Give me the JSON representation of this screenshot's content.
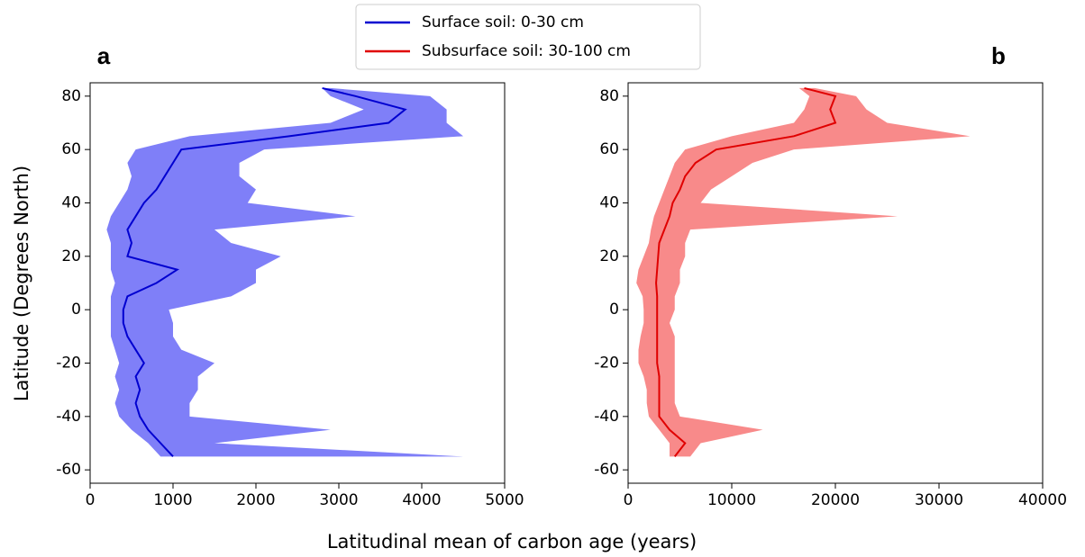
{
  "shared": {
    "xlabel": "Latitudinal mean of carbon age (years)",
    "ylabel": "Latitude (Degrees North)"
  },
  "chart_data": [
    {
      "type": "line",
      "panel_label": "a",
      "xlim": [
        0,
        5000
      ],
      "xticks": [
        0,
        1000,
        2000,
        3000,
        4000,
        5000
      ],
      "ylim": [
        -65,
        85
      ],
      "yticks": [
        -60,
        -40,
        -20,
        0,
        20,
        40,
        60,
        80
      ],
      "series": [
        {
          "name": "Surface soil: 0-30 cm",
          "color": "#0000d0",
          "band_color": "#7f7ff8",
          "latitude": [
            -55,
            -50,
            -45,
            -40,
            -35,
            -30,
            -25,
            -20,
            -15,
            -10,
            -5,
            0,
            5,
            10,
            15,
            20,
            25,
            30,
            35,
            40,
            45,
            50,
            55,
            60,
            65,
            70,
            75,
            80,
            83
          ],
          "values": [
            1000,
            850,
            700,
            600,
            550,
            600,
            550,
            650,
            550,
            450,
            400,
            400,
            450,
            800,
            1050,
            450,
            500,
            450,
            550,
            650,
            800,
            900,
            1000,
            1100,
            2400,
            3600,
            3800,
            3200,
            2800
          ],
          "lower": [
            850,
            700,
            500,
            350,
            300,
            350,
            300,
            350,
            300,
            250,
            250,
            250,
            250,
            300,
            250,
            250,
            250,
            200,
            250,
            350,
            450,
            500,
            450,
            550,
            1200,
            2900,
            3300,
            2900,
            2800
          ],
          "upper": [
            4500,
            1500,
            2900,
            1200,
            1200,
            1300,
            1300,
            1500,
            1100,
            1000,
            1000,
            950,
            1700,
            2000,
            2000,
            2300,
            1700,
            1500,
            3200,
            1900,
            2000,
            1800,
            1800,
            2100,
            4500,
            4300,
            4300,
            4100,
            2900
          ]
        }
      ]
    },
    {
      "type": "line",
      "panel_label": "b",
      "xlim": [
        0,
        40000
      ],
      "xticks": [
        0,
        10000,
        20000,
        30000,
        40000
      ],
      "ylim": [
        -65,
        85
      ],
      "yticks": [
        -60,
        -40,
        -20,
        0,
        20,
        40,
        60,
        80
      ],
      "series": [
        {
          "name": "Subsurface soil: 30-100 cm",
          "color": "#e00000",
          "band_color": "#f88a8a",
          "latitude": [
            -55,
            -50,
            -45,
            -40,
            -35,
            -30,
            -25,
            -20,
            -15,
            -10,
            -5,
            0,
            5,
            10,
            15,
            20,
            25,
            30,
            35,
            40,
            45,
            50,
            55,
            60,
            65,
            70,
            75,
            80,
            83
          ],
          "values": [
            4500,
            5500,
            4000,
            3000,
            3000,
            3000,
            3000,
            2800,
            2800,
            2800,
            2800,
            2800,
            2800,
            2700,
            2800,
            2900,
            3000,
            3500,
            4000,
            4300,
            5000,
            5500,
            6500,
            8500,
            16000,
            20000,
            19500,
            20000,
            17000
          ],
          "lower": [
            4000,
            4000,
            3000,
            2000,
            1800,
            1800,
            1500,
            1000,
            1000,
            1200,
            1500,
            1500,
            1400,
            800,
            1000,
            1500,
            2000,
            2200,
            2500,
            3000,
            3500,
            4000,
            4500,
            5500,
            10000,
            16000,
            17000,
            17500,
            16500
          ],
          "upper": [
            6000,
            7000,
            13000,
            5000,
            4500,
            4500,
            4500,
            4500,
            4500,
            4500,
            4000,
            4500,
            4500,
            5000,
            5000,
            5500,
            5500,
            6000,
            26000,
            7000,
            8000,
            10000,
            12000,
            16000,
            33000,
            25000,
            23000,
            22000,
            18000
          ]
        }
      ]
    }
  ]
}
